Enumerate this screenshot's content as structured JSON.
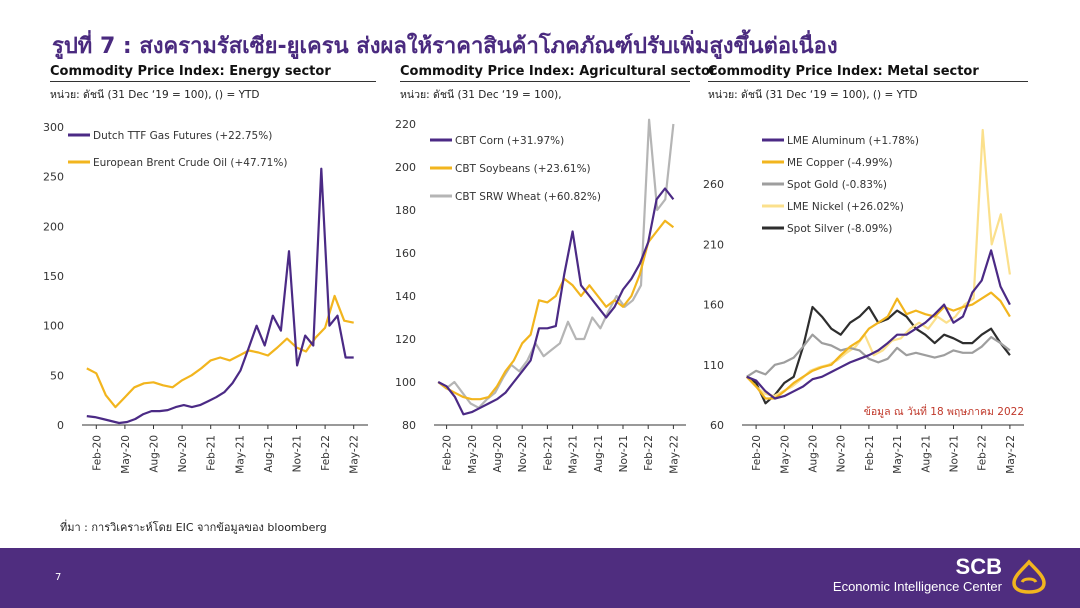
{
  "slide": {
    "title": "รูปที่ 7 : สงครามรัสเซีย-ยูเครน ส่งผลให้ราคาสินค้าโภคภัณฑ์ปรับเพิ่มสูงขึ้นต่อเนื่อง",
    "source": "ที่มา : การวิเคราะห์โดย EIC จากข้อมูลของ bloomberg",
    "page_number": "7",
    "brand_name": "SCB",
    "brand_sub": "Economic Intelligence Center",
    "logo_icon": "scb-logo-icon",
    "footer_color": "#4f2d7f"
  },
  "chart_data": [
    {
      "type": "line",
      "title": "Commodity Price Index: Energy sector",
      "subtitle": "หน่วย: ดัชนี (31 Dec ‘19 = 100), () = YTD",
      "x_ticks": [
        "Feb-20",
        "May-20",
        "Aug-20",
        "Nov-20",
        "Feb-21",
        "May-21",
        "Aug-21",
        "Nov-21",
        "Feb-22",
        "May-22"
      ],
      "ylim": [
        0,
        300
      ],
      "y_ticks": [
        0,
        50,
        100,
        150,
        200,
        250,
        300
      ],
      "legend_position": "top-left",
      "series": [
        {
          "name": "Dutch TTF Gas Futures (+22.75%)",
          "color": "#4b2a85",
          "x": [
            "Jan-20",
            "Feb-20",
            "Mar-20",
            "Apr-20",
            "May-20",
            "Jun-20",
            "Jul-20",
            "Aug-20",
            "Sep-20",
            "Oct-20",
            "Nov-20",
            "Dec-20",
            "Jan-21",
            "Feb-21",
            "Mar-21",
            "Apr-21",
            "May-21",
            "Jun-21",
            "Jul-21",
            "Aug-21",
            "Sep-21",
            "Early Oct-21",
            "Mid Oct-21",
            "Late Oct-21",
            "Nov-21",
            "Mid Dec-21",
            "Dec-21",
            "Jan-22",
            "Feb-22",
            "Early Mar-22",
            "Mar-22",
            "Apr-22",
            "Early May-22",
            "May-22"
          ],
          "values": [
            9,
            8,
            6,
            4,
            2,
            3,
            6,
            11,
            14,
            14,
            15,
            18,
            20,
            18,
            20,
            24,
            28,
            33,
            42,
            55,
            77,
            100,
            80,
            110,
            95,
            175,
            60,
            90,
            80,
            258,
            100,
            110,
            68,
            68
          ]
        },
        {
          "name": "European Brent Crude Oil (+47.71%)",
          "color": "#f2b51e",
          "x": [
            "Jan-20",
            "Feb-20",
            "Mar-20",
            "Apr-20",
            "May-20",
            "Jun-20",
            "Jul-20",
            "Aug-20",
            "Sep-20",
            "Oct-20",
            "Nov-20",
            "Dec-20",
            "Jan-21",
            "Feb-21",
            "Mar-21",
            "Apr-21",
            "May-21",
            "Jun-21",
            "Jul-21",
            "Aug-21",
            "Sep-21",
            "Oct-21",
            "Nov-21",
            "Dec-21",
            "Jan-22",
            "Feb-22",
            "Mar-22",
            "Apr-22",
            "May-22"
          ],
          "values": [
            57,
            52,
            30,
            18,
            28,
            38,
            42,
            43,
            40,
            38,
            45,
            50,
            57,
            65,
            68,
            65,
            70,
            75,
            73,
            70,
            78,
            87,
            78,
            74,
            88,
            98,
            130,
            105,
            103
          ]
        }
      ]
    },
    {
      "type": "line",
      "title": "Commodity Price Index: Agricultural sector",
      "subtitle": "หน่วย: ดัชนี (31 Dec ‘19 = 100),",
      "x_ticks": [
        "Feb-20",
        "May-20",
        "Aug-20",
        "Nov-20",
        "Feb-21",
        "May-21",
        "Aug-21",
        "Nov-21",
        "Feb-22",
        "May-22"
      ],
      "ylim": [
        80,
        220
      ],
      "y_ticks": [
        80,
        100,
        120,
        140,
        160,
        180,
        200,
        220
      ],
      "legend_position": "top-left",
      "series": [
        {
          "name": "CBT Corn (+31.97%)",
          "color": "#4b2a85",
          "x": [
            "Jan-20",
            "Feb-20",
            "Mar-20",
            "Apr-20",
            "May-20",
            "Jun-20",
            "Jul-20",
            "Aug-20",
            "Sep-20",
            "Oct-20",
            "Nov-20",
            "Dec-20",
            "Jan-21",
            "Feb-21",
            "Mar-21",
            "Apr-21",
            "May-21",
            "Jun-21",
            "Jul-21",
            "Aug-21",
            "Sep-21",
            "Oct-21",
            "Nov-21",
            "Dec-21",
            "Jan-22",
            "Feb-22",
            "Mar-22",
            "Apr-22",
            "May-22"
          ],
          "values": [
            100,
            98,
            93,
            85,
            86,
            88,
            90,
            92,
            95,
            100,
            105,
            110,
            125,
            125,
            126,
            150,
            170,
            145,
            140,
            135,
            130,
            135,
            143,
            148,
            155,
            165,
            185,
            190,
            185
          ]
        },
        {
          "name": "CBT Soybeans (+23.61%)",
          "color": "#f2b51e",
          "x": [
            "Jan-20",
            "Feb-20",
            "Mar-20",
            "Apr-20",
            "May-20",
            "Jun-20",
            "Jul-20",
            "Aug-20",
            "Sep-20",
            "Oct-20",
            "Nov-20",
            "Dec-20",
            "Jan-21",
            "Feb-21",
            "Mar-21",
            "Apr-21",
            "May-21",
            "Jun-21",
            "Jul-21",
            "Aug-21",
            "Sep-21",
            "Oct-21",
            "Nov-21",
            "Dec-21",
            "Jan-22",
            "Feb-22",
            "Mar-22",
            "Apr-22",
            "May-22"
          ],
          "values": [
            100,
            97,
            95,
            93,
            92,
            92,
            93,
            98,
            105,
            110,
            118,
            122,
            138,
            137,
            140,
            148,
            145,
            140,
            145,
            140,
            135,
            138,
            135,
            140,
            150,
            165,
            170,
            175,
            172
          ]
        },
        {
          "name": "CBT SRW Wheat (+60.82%)",
          "color": "#b5b5b5",
          "x": [
            "Jan-20",
            "Feb-20",
            "Mar-20",
            "Apr-20",
            "May-20",
            "Jun-20",
            "Jul-20",
            "Aug-20",
            "Sep-20",
            "Oct-20",
            "Nov-20",
            "Dec-20",
            "Jan-21",
            "Feb-21",
            "Mar-21",
            "Apr-21",
            "May-21",
            "Jun-21",
            "Jul-21",
            "Aug-21",
            "Sep-21",
            "Oct-21",
            "Nov-21",
            "Dec-21",
            "Jan-22",
            "Feb-22",
            "Early Mar-22",
            "Mar-22",
            "Apr-22",
            "May-22"
          ],
          "values": [
            100,
            97,
            100,
            95,
            90,
            88,
            92,
            95,
            102,
            108,
            105,
            110,
            118,
            112,
            115,
            118,
            128,
            120,
            120,
            130,
            125,
            133,
            140,
            135,
            138,
            145,
            222,
            180,
            185,
            220
          ]
        }
      ]
    },
    {
      "type": "line",
      "title": "Commodity Price Index: Metal sector",
      "subtitle": "หน่วย: ดัชนี (31 Dec ‘19 = 100), () = YTD",
      "x_ticks": [
        "Feb-20",
        "May-20",
        "Aug-20",
        "Nov-20",
        "Feb-21",
        "May-21",
        "Aug-21",
        "Nov-21",
        "Feb-22",
        "May-22"
      ],
      "ylim": [
        60,
        310
      ],
      "y_ticks": [
        60,
        110,
        160,
        210,
        260
      ],
      "legend_position": "top-left",
      "annotation": "ข้อมูล ณ วันที่ 18 พฤษภาคม 2022",
      "series": [
        {
          "name": "LME Aluminum (+1.78%)",
          "color": "#4b2a85",
          "x": [
            "Jan-20",
            "Feb-20",
            "Mar-20",
            "Apr-20",
            "May-20",
            "Jun-20",
            "Jul-20",
            "Aug-20",
            "Sep-20",
            "Oct-20",
            "Nov-20",
            "Dec-20",
            "Jan-21",
            "Feb-21",
            "Mar-21",
            "Apr-21",
            "May-21",
            "Jun-21",
            "Jul-21",
            "Aug-21",
            "Sep-21",
            "Oct-21",
            "Nov-21",
            "Dec-21",
            "Jan-22",
            "Feb-22",
            "Mar-22",
            "Apr-22",
            "May-22"
          ],
          "values": [
            100,
            97,
            88,
            82,
            84,
            88,
            92,
            98,
            100,
            104,
            108,
            112,
            115,
            118,
            122,
            128,
            135,
            135,
            140,
            145,
            152,
            160,
            145,
            150,
            170,
            180,
            205,
            175,
            160
          ]
        },
        {
          "name": "ME Copper (-4.99%)",
          "color": "#f2b51e",
          "x": [
            "Jan-20",
            "Feb-20",
            "Mar-20",
            "Apr-20",
            "May-20",
            "Jun-20",
            "Jul-20",
            "Aug-20",
            "Sep-20",
            "Oct-20",
            "Nov-20",
            "Dec-20",
            "Jan-21",
            "Feb-21",
            "Mar-21",
            "Apr-21",
            "May-21",
            "Jun-21",
            "Jul-21",
            "Aug-21",
            "Sep-21",
            "Oct-21",
            "Nov-21",
            "Dec-21",
            "Jan-22",
            "Feb-22",
            "Mar-22",
            "Apr-22",
            "May-22"
          ],
          "values": [
            100,
            92,
            82,
            82,
            88,
            95,
            100,
            105,
            108,
            110,
            118,
            125,
            130,
            140,
            145,
            150,
            165,
            152,
            155,
            152,
            150,
            158,
            155,
            158,
            160,
            165,
            170,
            163,
            150
          ]
        },
        {
          "name": "Spot Gold (-0.83%)",
          "color": "#9e9e9e",
          "x": [
            "Jan-20",
            "Feb-20",
            "Mar-20",
            "Apr-20",
            "May-20",
            "Jun-20",
            "Jul-20",
            "Aug-20",
            "Sep-20",
            "Oct-20",
            "Nov-20",
            "Dec-20",
            "Jan-21",
            "Feb-21",
            "Mar-21",
            "Apr-21",
            "May-21",
            "Jun-21",
            "Jul-21",
            "Aug-21",
            "Sep-21",
            "Oct-21",
            "Nov-21",
            "Dec-21",
            "Jan-22",
            "Feb-22",
            "Mar-22",
            "Apr-22",
            "May-22"
          ],
          "values": [
            100,
            105,
            102,
            110,
            112,
            116,
            125,
            135,
            128,
            126,
            122,
            124,
            122,
            115,
            112,
            115,
            124,
            118,
            120,
            118,
            116,
            118,
            122,
            120,
            120,
            125,
            133,
            128,
            122
          ]
        },
        {
          "name": "LME Nickel (+26.02%)",
          "color": "#fbe08c",
          "x": [
            "Jan-20",
            "Feb-20",
            "Mar-20",
            "Apr-20",
            "May-20",
            "Jun-20",
            "Jul-20",
            "Aug-20",
            "Sep-20",
            "Oct-20",
            "Nov-20",
            "Dec-20",
            "Jan-21",
            "Feb-21",
            "Mar-21",
            "Apr-21",
            "May-21",
            "Jun-21",
            "Jul-21",
            "Aug-21",
            "Sep-21",
            "Oct-21",
            "Nov-21",
            "Dec-21",
            "Jan-22",
            "Feb-22",
            "Early Mar-22",
            "Mar-22",
            "Apr-22",
            "May-22"
          ],
          "values": [
            100,
            92,
            86,
            84,
            88,
            92,
            98,
            105,
            108,
            110,
            114,
            120,
            125,
            135,
            118,
            122,
            130,
            132,
            140,
            145,
            140,
            150,
            145,
            150,
            160,
            165,
            305,
            210,
            235,
            185
          ]
        },
        {
          "name": "Spot Silver (-8.09%)",
          "color": "#2e2e2e",
          "x": [
            "Jan-20",
            "Feb-20",
            "Mar-20",
            "Apr-20",
            "May-20",
            "Jun-20",
            "Jul-20",
            "Aug-20",
            "Sep-20",
            "Oct-20",
            "Nov-20",
            "Dec-20",
            "Jan-21",
            "Feb-21",
            "Mar-21",
            "Apr-21",
            "May-21",
            "Jun-21",
            "Jul-21",
            "Aug-21",
            "Sep-21",
            "Oct-21",
            "Nov-21",
            "Dec-21",
            "Jan-22",
            "Feb-22",
            "Mar-22",
            "Apr-22",
            "May-22"
          ],
          "values": [
            100,
            95,
            78,
            85,
            95,
            100,
            125,
            158,
            150,
            140,
            135,
            145,
            150,
            158,
            145,
            148,
            155,
            150,
            140,
            135,
            128,
            135,
            132,
            128,
            128,
            135,
            140,
            128,
            118
          ]
        }
      ]
    }
  ]
}
